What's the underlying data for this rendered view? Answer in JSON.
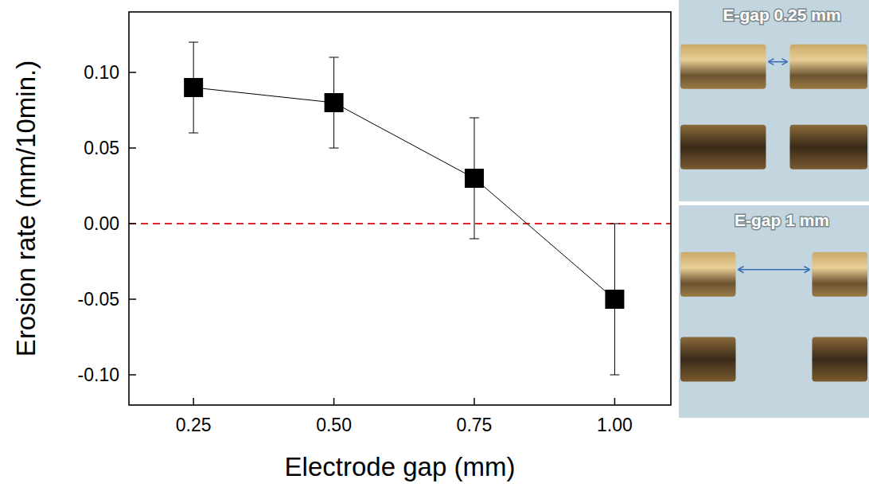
{
  "chart_data": {
    "type": "scatter",
    "x_label": "Electrode gap (mm)",
    "y_label": "Erosion rate (mm/10min.)",
    "x": [
      0.25,
      0.5,
      0.75,
      1.0
    ],
    "values": [
      0.09,
      0.08,
      0.03,
      -0.05
    ],
    "errors": [
      0.03,
      0.03,
      0.04,
      0.05
    ],
    "color": "#000000",
    "marker": "square",
    "line_style": "solid",
    "xlim": [
      0.135,
      1.1
    ],
    "xticks": [
      {
        "value": 0.25,
        "label": "0.25"
      },
      {
        "value": 0.5,
        "label": "0.50"
      },
      {
        "value": 0.75,
        "label": "0.75"
      },
      {
        "value": 1.0,
        "label": "1.00"
      }
    ],
    "ylim": [
      -0.12,
      0.14
    ],
    "yticks": [
      {
        "value": -0.1,
        "label": "-0.10"
      },
      {
        "value": -0.05,
        "label": "-0.05"
      },
      {
        "value": 0,
        "label": "0.00"
      },
      {
        "value": 0.05,
        "label": "0.05"
      },
      {
        "value": 0.1,
        "label": "0.10"
      }
    ],
    "grid": false,
    "hline": {
      "value": 0,
      "color": "#e3262a",
      "line_style": "dashed"
    },
    "annotations": [
      "E-gap 0.25 mm",
      "E-gap 1 mm"
    ]
  }
}
